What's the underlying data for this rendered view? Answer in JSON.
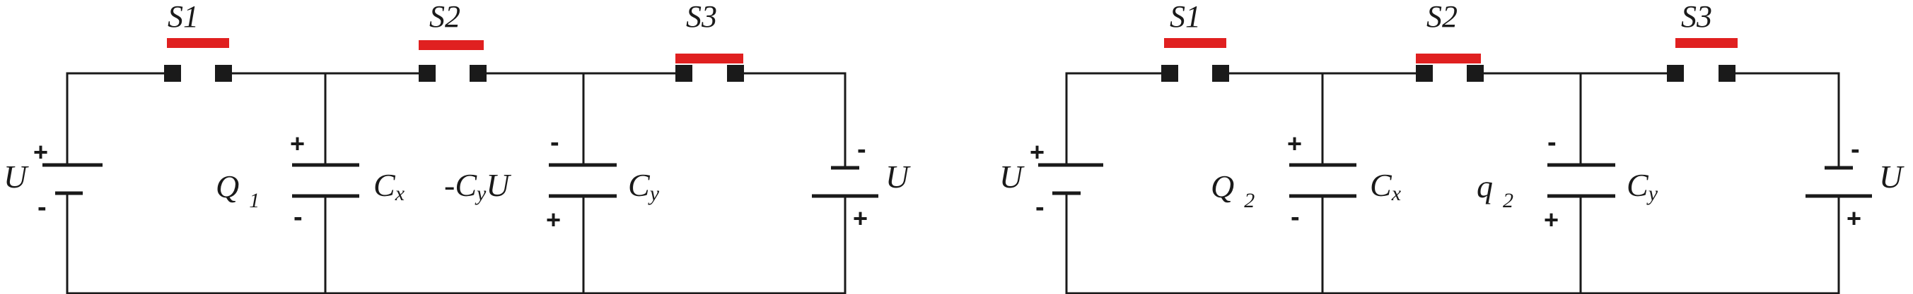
{
  "figure": {
    "left_circuit": {
      "switches": [
        {
          "label": "S1",
          "state": "open"
        },
        {
          "label": "S2",
          "state": "open"
        },
        {
          "label": "S3",
          "state": "closed"
        }
      ],
      "left_source": {
        "label": "U",
        "top_sign": "+",
        "bottom_sign": "-"
      },
      "charge_label": {
        "main": "Q",
        "sub": "1"
      },
      "cap_x": {
        "label_main": "C",
        "label_sub": "x",
        "top_sign": "+",
        "bottom_sign": "-"
      },
      "cap_y_charge": {
        "prefix": "-C",
        "sub": "y",
        "suffix": "U"
      },
      "cap_y": {
        "label_main": "C",
        "label_sub": "y",
        "top_sign": "-",
        "bottom_sign": "+"
      },
      "right_source": {
        "label": "U",
        "top_sign": "-",
        "bottom_sign": "+"
      }
    },
    "right_circuit": {
      "switches": [
        {
          "label": "S1",
          "state": "open"
        },
        {
          "label": "S2",
          "state": "closed"
        },
        {
          "label": "S3",
          "state": "open"
        }
      ],
      "left_source": {
        "label": "U",
        "top_sign": "+",
        "bottom_sign": "-"
      },
      "charge_label": {
        "main": "Q",
        "sub": "2"
      },
      "cap_x": {
        "label_main": "C",
        "label_sub": "x",
        "top_sign": "+",
        "bottom_sign": "-"
      },
      "cap_y_charge": {
        "main": "q",
        "sub": "2"
      },
      "cap_y": {
        "label_main": "C",
        "label_sub": "y",
        "top_sign": "-",
        "bottom_sign": "+"
      },
      "right_source": {
        "label": "U",
        "top_sign": "-",
        "bottom_sign": "+"
      }
    },
    "colors": {
      "wire": "#1a1a1a",
      "switch_bar": "#e02020",
      "background": "#ffffff"
    }
  }
}
